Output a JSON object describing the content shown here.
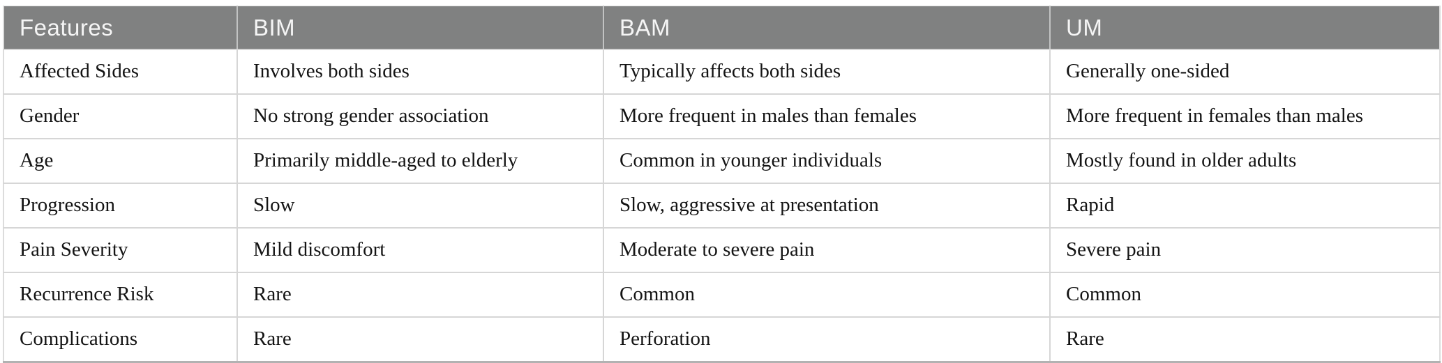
{
  "table": {
    "columns": [
      {
        "label": "Features"
      },
      {
        "label": "BIM"
      },
      {
        "label": "BAM"
      },
      {
        "label": "UM"
      }
    ],
    "rows": [
      {
        "feature": "Affected Sides",
        "bim": "Involves both sides",
        "bam": "Typically affects both sides",
        "um": "Generally one-sided"
      },
      {
        "feature": "Gender",
        "bim": "No strong gender association",
        "bam": "More frequent in males than females",
        "um": "More frequent in females than males"
      },
      {
        "feature": "Age",
        "bim": "Primarily middle-aged to elderly",
        "bam": "Common in younger individuals",
        "um": "Mostly found in older adults"
      },
      {
        "feature": "Progression",
        "bim": "Slow",
        "bam": "Slow, aggressive at presentation",
        "um": "Rapid"
      },
      {
        "feature": "Pain Severity",
        "bim": "Mild discomfort",
        "bam": "Moderate to severe pain",
        "um": "Severe pain"
      },
      {
        "feature": "Recurrence Risk",
        "bim": "Rare",
        "bam": "Common",
        "um": "Common"
      },
      {
        "feature": "Complications",
        "bim": "Rare",
        "bam": "Perforation",
        "um": "Rare"
      }
    ]
  },
  "colors": {
    "header_bg": "#808181",
    "header_text": "#f5f5f5",
    "body_text": "#141414",
    "rule": "#d6d6d6",
    "rule_header": "#c2c3c3",
    "outer_border": "#dcdcdc",
    "bottom_border": "#b2b2b2"
  }
}
